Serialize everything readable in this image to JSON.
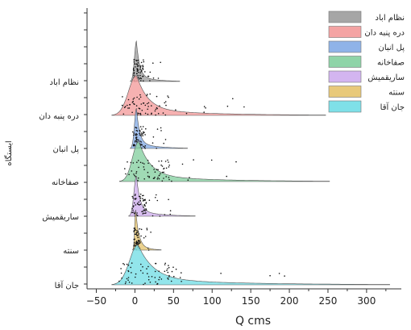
{
  "chart_data": {
    "type": "ridgeline",
    "xlabel": "Q cms",
    "ylabel": "ایستگاه",
    "xlim": [
      -62,
      345
    ],
    "xticks": [
      -50,
      0,
      50,
      100,
      150,
      200,
      250,
      300,
      350
    ],
    "series": [
      {
        "name": "نظام اباد",
        "color": "#a6a6a6",
        "peak": 2,
        "min": -6,
        "max": 58
      },
      {
        "name": "دره پنبه دان",
        "color": "#f4a3a3",
        "peak": 2,
        "min": -30,
        "max": 247
      },
      {
        "name": "پل انبان",
        "color": "#8fb3e8",
        "peak": 2,
        "min": -6,
        "max": 68
      },
      {
        "name": "صفاخانه",
        "color": "#8fd4a8",
        "peak": 5,
        "min": -20,
        "max": 252
      },
      {
        "name": "ساریقمیش",
        "color": "#d3b5f0",
        "peak": 2,
        "min": -8,
        "max": 78
      },
      {
        "name": "سنته",
        "color": "#e8c97a",
        "peak": 1,
        "min": -3,
        "max": 34
      },
      {
        "name": "جان آقا",
        "color": "#7fe0e8",
        "peak": 4,
        "min": -30,
        "max": 330
      }
    ]
  }
}
